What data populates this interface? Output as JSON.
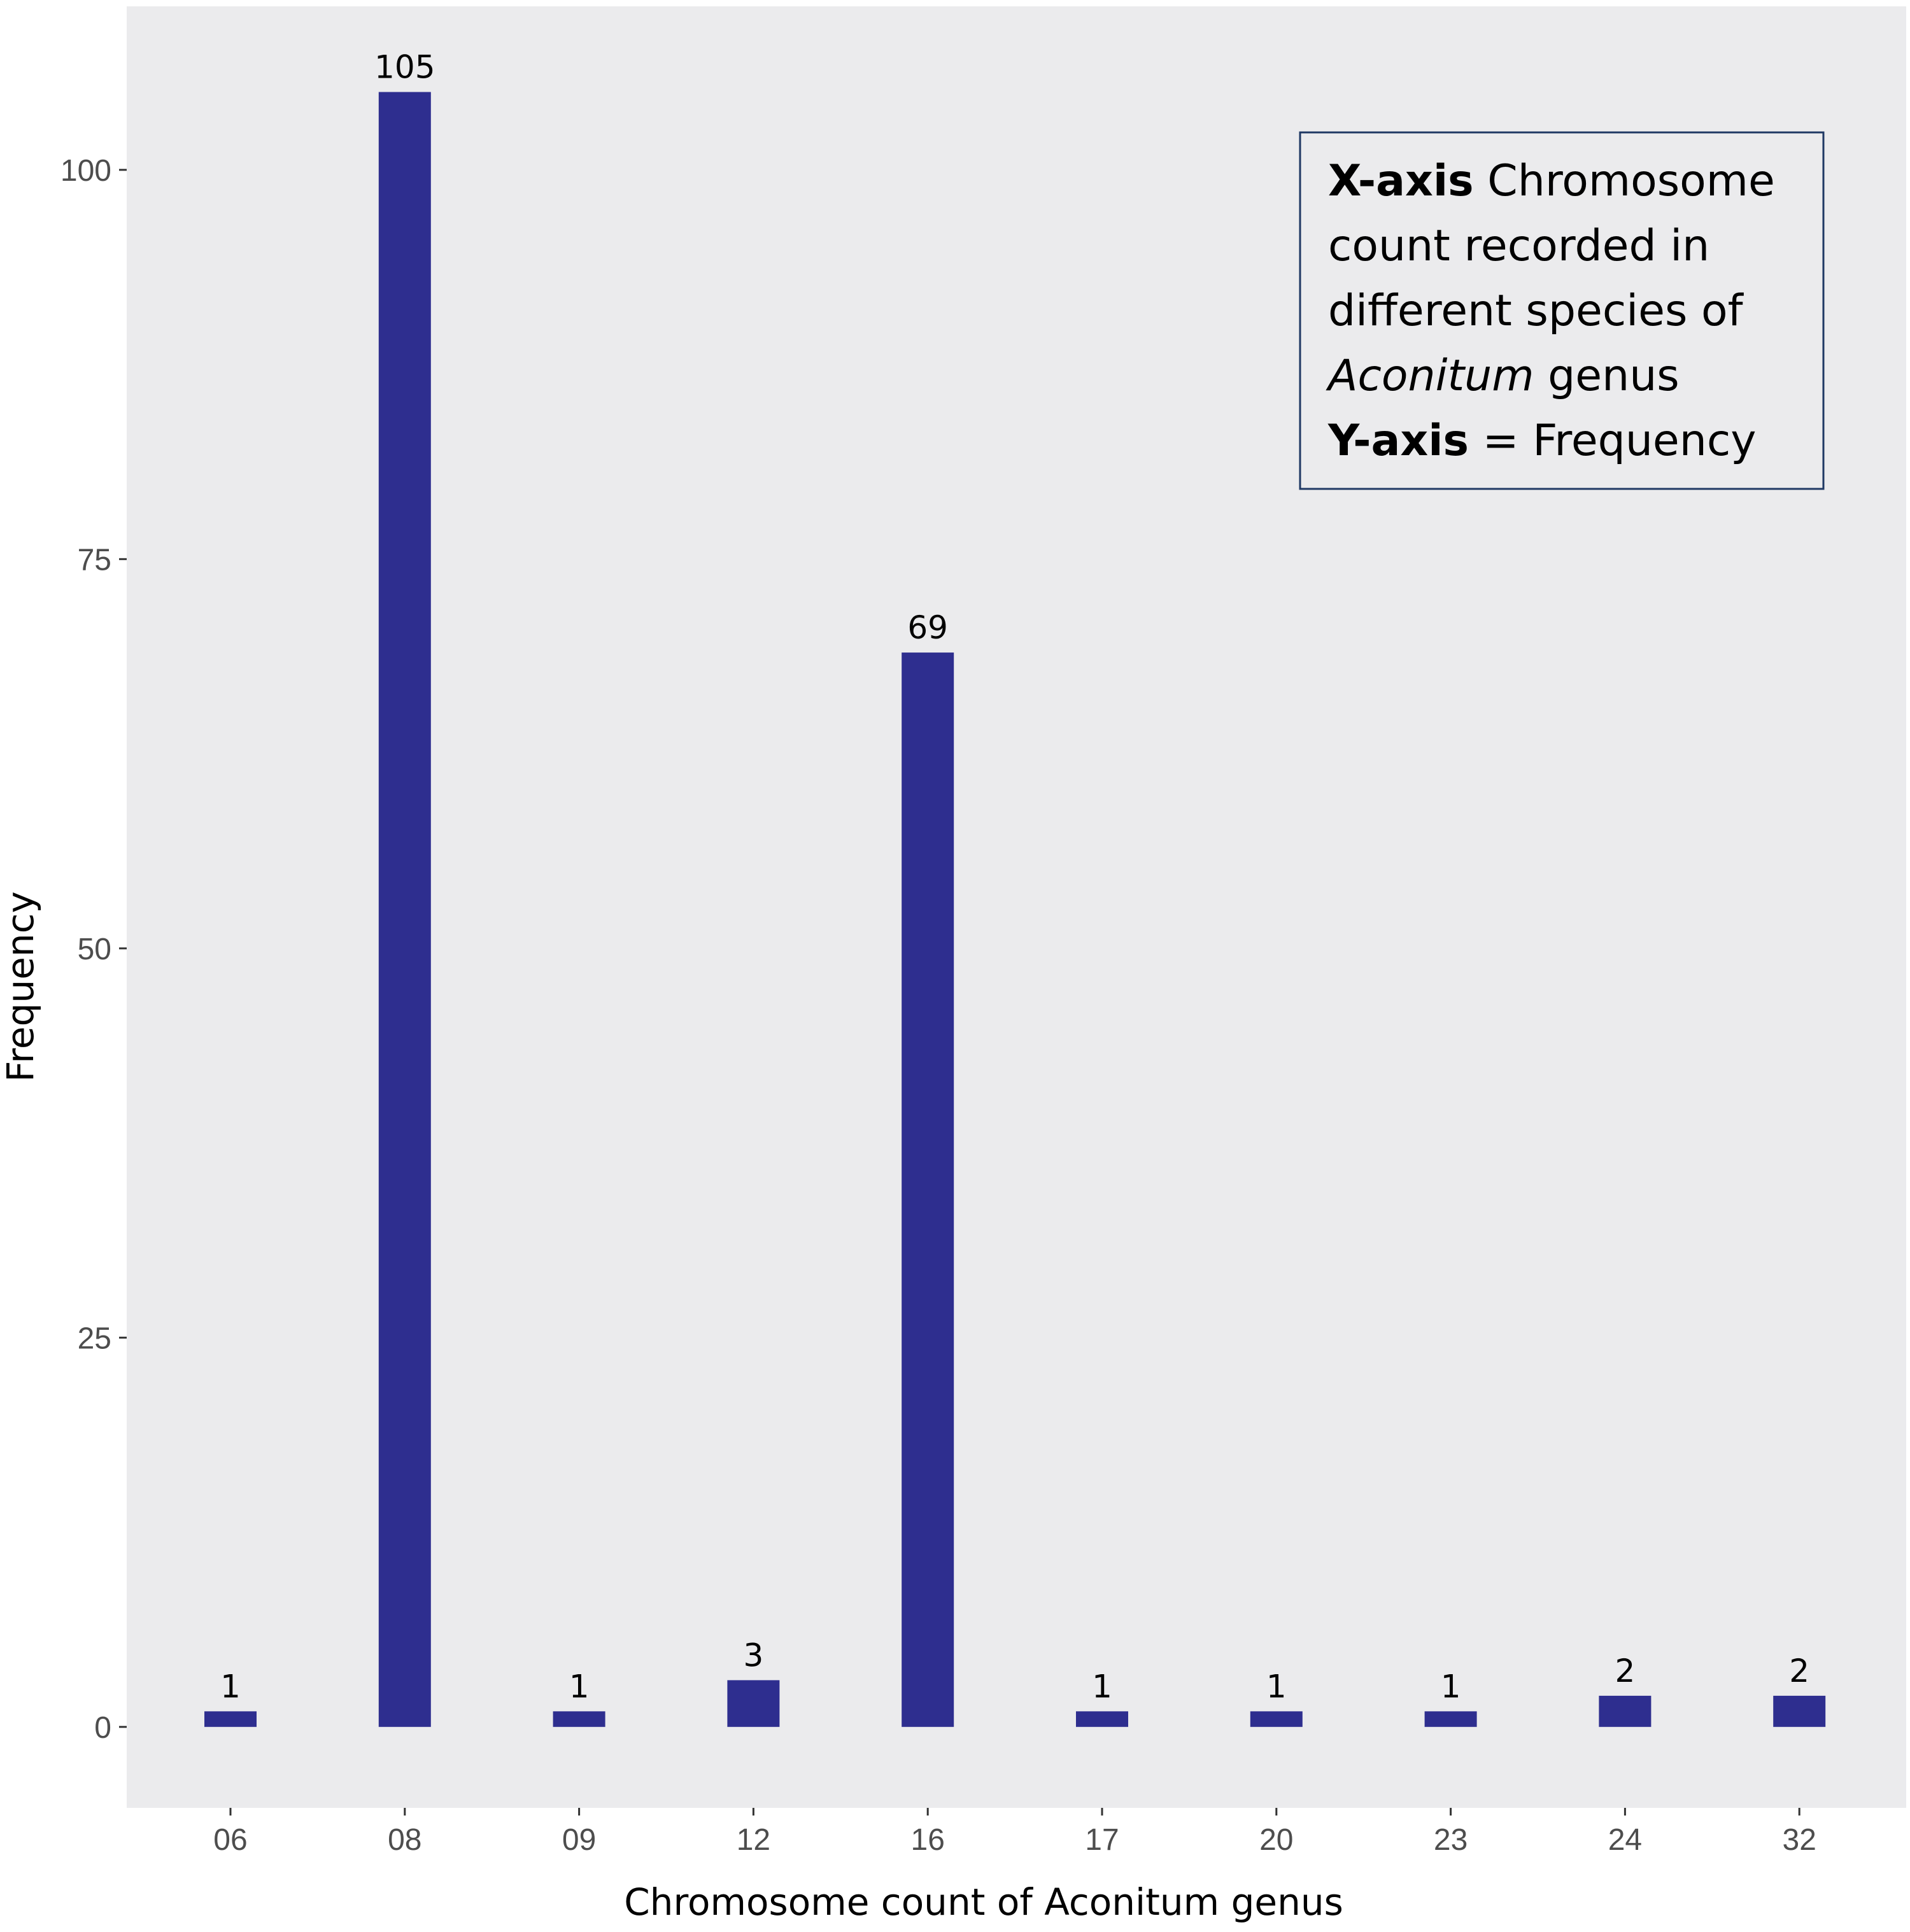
{
  "chart_data": {
    "type": "bar",
    "categories": [
      "06",
      "08",
      "09",
      "12",
      "16",
      "17",
      "20",
      "23",
      "24",
      "32"
    ],
    "values": [
      1,
      105,
      1,
      3,
      69,
      1,
      1,
      1,
      2,
      2
    ],
    "data_labels": [
      "1",
      "105",
      "1",
      "3",
      "69",
      "1",
      "1",
      "1",
      "2",
      "2"
    ],
    "xlabel": "Chromosome count of Aconitum genus",
    "ylabel": "Frequency",
    "ylim": [
      -5.2,
      110.5
    ],
    "yticks": [
      0,
      25,
      50,
      75,
      100
    ],
    "ytick_labels": [
      "0",
      "25",
      "50",
      "75",
      "100"
    ],
    "grid": false,
    "bar_color": "#2e2e8f",
    "panel_color": "#ebebed",
    "info_box": {
      "x_bold": "X-axis",
      "x_text_1": " Chromosome",
      "x_text_2": "count recorded in",
      "x_text_3": "different species of",
      "x_italic": "Aconitum",
      "x_text_4": " genus",
      "y_bold": "Y-axis",
      "y_text": " = Frequency",
      "border_color": "#1f3864"
    }
  }
}
